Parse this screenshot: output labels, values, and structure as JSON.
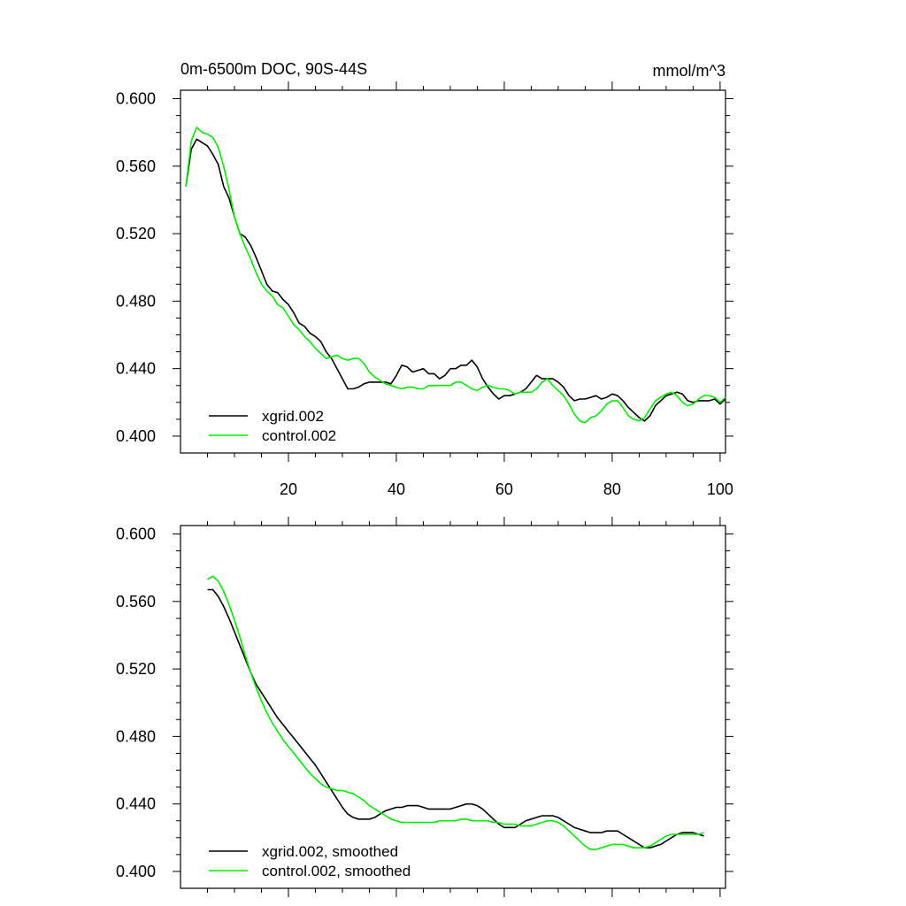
{
  "colors": {
    "xgrid": "#000000",
    "control": "#00ee00"
  },
  "chart_data": [
    {
      "type": "line",
      "title": "0m-6500m DOC, 90S-44S",
      "units": "mmol/m^3",
      "xlim": [
        0,
        101
      ],
      "ylim": [
        0.39,
        0.605
      ],
      "yticks": [
        0.4,
        0.44,
        0.48,
        0.52,
        0.56,
        0.6
      ],
      "ytick_labels": [
        "0.400",
        "0.440",
        "0.480",
        "0.520",
        "0.560",
        "0.600"
      ],
      "xticks": [
        20,
        40,
        60,
        80,
        100
      ],
      "xtick_labels": [
        "20",
        "40",
        "60",
        "80",
        "100"
      ],
      "series": [
        {
          "name": "xgrid.002",
          "color_key": "xgrid",
          "x": [
            1,
            2,
            3,
            4,
            5,
            6,
            7,
            8,
            9,
            10,
            11,
            12,
            13,
            14,
            15,
            16,
            17,
            18,
            19,
            20,
            21,
            22,
            23,
            24,
            25,
            26,
            27,
            28,
            29,
            30,
            31,
            32,
            33,
            34,
            35,
            36,
            37,
            38,
            39,
            40,
            41,
            42,
            43,
            44,
            45,
            46,
            47,
            48,
            49,
            50,
            51,
            52,
            53,
            54,
            55,
            56,
            57,
            58,
            59,
            60,
            61,
            62,
            63,
            64,
            65,
            66,
            67,
            68,
            69,
            70,
            71,
            72,
            73,
            74,
            75,
            76,
            77,
            78,
            79,
            80,
            81,
            82,
            83,
            84,
            85,
            86,
            87,
            88,
            89,
            90,
            91,
            92,
            93,
            94,
            95,
            96,
            97,
            98,
            99,
            100,
            101
          ],
          "values": [
            0.548,
            0.57,
            0.576,
            0.574,
            0.572,
            0.567,
            0.561,
            0.548,
            0.541,
            0.53,
            0.52,
            0.518,
            0.513,
            0.506,
            0.498,
            0.49,
            0.486,
            0.485,
            0.481,
            0.478,
            0.473,
            0.467,
            0.465,
            0.461,
            0.459,
            0.456,
            0.45,
            0.446,
            0.44,
            0.434,
            0.428,
            0.428,
            0.429,
            0.431,
            0.432,
            0.432,
            0.432,
            0.432,
            0.431,
            0.436,
            0.442,
            0.441,
            0.438,
            0.439,
            0.44,
            0.437,
            0.437,
            0.434,
            0.436,
            0.44,
            0.44,
            0.442,
            0.442,
            0.445,
            0.441,
            0.434,
            0.429,
            0.425,
            0.422,
            0.424,
            0.424,
            0.425,
            0.426,
            0.428,
            0.432,
            0.436,
            0.434,
            0.434,
            0.434,
            0.432,
            0.429,
            0.424,
            0.421,
            0.422,
            0.422,
            0.423,
            0.424,
            0.422,
            0.423,
            0.425,
            0.424,
            0.421,
            0.417,
            0.414,
            0.411,
            0.409,
            0.412,
            0.418,
            0.421,
            0.424,
            0.425,
            0.426,
            0.425,
            0.421,
            0.42,
            0.421,
            0.421,
            0.421,
            0.422,
            0.419,
            0.422
          ]
        },
        {
          "name": "control.002",
          "color_key": "control",
          "x": [
            1,
            2,
            3,
            4,
            5,
            6,
            7,
            8,
            9,
            10,
            11,
            12,
            13,
            14,
            15,
            16,
            17,
            18,
            19,
            20,
            21,
            22,
            23,
            24,
            25,
            26,
            27,
            28,
            29,
            30,
            31,
            32,
            33,
            34,
            35,
            36,
            37,
            38,
            39,
            40,
            41,
            42,
            43,
            44,
            45,
            46,
            47,
            48,
            49,
            50,
            51,
            52,
            53,
            54,
            55,
            56,
            57,
            58,
            59,
            60,
            61,
            62,
            63,
            64,
            65,
            66,
            67,
            68,
            69,
            70,
            71,
            72,
            73,
            74,
            75,
            76,
            77,
            78,
            79,
            80,
            81,
            82,
            83,
            84,
            85,
            86,
            87,
            88,
            89,
            90,
            91,
            92,
            93,
            94,
            95,
            96,
            97,
            98,
            99,
            100,
            101
          ],
          "values": [
            0.548,
            0.575,
            0.583,
            0.58,
            0.579,
            0.577,
            0.571,
            0.56,
            0.546,
            0.53,
            0.52,
            0.512,
            0.505,
            0.497,
            0.49,
            0.486,
            0.483,
            0.478,
            0.476,
            0.471,
            0.466,
            0.463,
            0.459,
            0.456,
            0.452,
            0.449,
            0.446,
            0.447,
            0.448,
            0.446,
            0.445,
            0.446,
            0.446,
            0.443,
            0.438,
            0.435,
            0.433,
            0.431,
            0.43,
            0.429,
            0.428,
            0.429,
            0.429,
            0.428,
            0.428,
            0.43,
            0.43,
            0.43,
            0.43,
            0.43,
            0.432,
            0.432,
            0.43,
            0.428,
            0.427,
            0.429,
            0.43,
            0.429,
            0.428,
            0.428,
            0.427,
            0.425,
            0.426,
            0.426,
            0.426,
            0.428,
            0.432,
            0.434,
            0.43,
            0.427,
            0.424,
            0.419,
            0.413,
            0.409,
            0.408,
            0.411,
            0.412,
            0.415,
            0.419,
            0.421,
            0.421,
            0.417,
            0.412,
            0.41,
            0.409,
            0.411,
            0.416,
            0.421,
            0.423,
            0.425,
            0.426,
            0.424,
            0.42,
            0.418,
            0.419,
            0.422,
            0.424,
            0.424,
            0.423,
            0.42,
            0.423
          ]
        }
      ],
      "legend": {
        "placement": "bottom-left",
        "entries": [
          "xgrid.002",
          "control.002"
        ]
      }
    },
    {
      "type": "line",
      "title": "",
      "xlim": [
        0,
        101
      ],
      "ylim": [
        0.39,
        0.605
      ],
      "yticks": [
        0.4,
        0.44,
        0.48,
        0.52,
        0.56,
        0.6
      ],
      "ytick_labels": [
        "0.400",
        "0.440",
        "0.480",
        "0.520",
        "0.560",
        "0.600"
      ],
      "xticks": [
        20,
        40,
        60,
        80,
        100
      ],
      "xtick_labels": [],
      "series": [
        {
          "name": "xgrid.002, smoothed",
          "color_key": "xgrid",
          "x": [
            5,
            6,
            7,
            8,
            9,
            10,
            11,
            12,
            13,
            14,
            15,
            16,
            17,
            18,
            19,
            20,
            21,
            22,
            23,
            24,
            25,
            26,
            27,
            28,
            29,
            30,
            31,
            32,
            33,
            34,
            35,
            36,
            37,
            38,
            39,
            40,
            41,
            42,
            43,
            44,
            45,
            46,
            47,
            48,
            49,
            50,
            51,
            52,
            53,
            54,
            55,
            56,
            57,
            58,
            59,
            60,
            61,
            62,
            63,
            64,
            65,
            66,
            67,
            68,
            69,
            70,
            71,
            72,
            73,
            74,
            75,
            76,
            77,
            78,
            79,
            80,
            81,
            82,
            83,
            84,
            85,
            86,
            87,
            88,
            89,
            90,
            91,
            92,
            93,
            94,
            95,
            96,
            97
          ],
          "values": [
            0.567,
            0.567,
            0.563,
            0.557,
            0.55,
            0.542,
            0.534,
            0.526,
            0.518,
            0.511,
            0.506,
            0.501,
            0.496,
            0.491,
            0.487,
            0.483,
            0.479,
            0.475,
            0.471,
            0.467,
            0.463,
            0.458,
            0.453,
            0.448,
            0.443,
            0.438,
            0.434,
            0.432,
            0.431,
            0.431,
            0.431,
            0.432,
            0.434,
            0.436,
            0.437,
            0.438,
            0.438,
            0.439,
            0.439,
            0.439,
            0.438,
            0.437,
            0.437,
            0.437,
            0.437,
            0.437,
            0.438,
            0.439,
            0.44,
            0.44,
            0.439,
            0.437,
            0.434,
            0.431,
            0.428,
            0.426,
            0.426,
            0.426,
            0.428,
            0.43,
            0.431,
            0.432,
            0.433,
            0.433,
            0.433,
            0.432,
            0.43,
            0.428,
            0.426,
            0.425,
            0.424,
            0.423,
            0.423,
            0.423,
            0.424,
            0.424,
            0.424,
            0.422,
            0.42,
            0.418,
            0.416,
            0.414,
            0.414,
            0.415,
            0.416,
            0.418,
            0.42,
            0.422,
            0.423,
            0.423,
            0.423,
            0.422,
            0.421
          ]
        },
        {
          "name": "control.002, smoothed",
          "color_key": "control",
          "x": [
            5,
            6,
            7,
            8,
            9,
            10,
            11,
            12,
            13,
            14,
            15,
            16,
            17,
            18,
            19,
            20,
            21,
            22,
            23,
            24,
            25,
            26,
            27,
            28,
            29,
            30,
            31,
            32,
            33,
            34,
            35,
            36,
            37,
            38,
            39,
            40,
            41,
            42,
            43,
            44,
            45,
            46,
            47,
            48,
            49,
            50,
            51,
            52,
            53,
            54,
            55,
            56,
            57,
            58,
            59,
            60,
            61,
            62,
            63,
            64,
            65,
            66,
            67,
            68,
            69,
            70,
            71,
            72,
            73,
            74,
            75,
            76,
            77,
            78,
            79,
            80,
            81,
            82,
            83,
            84,
            85,
            86,
            87,
            88,
            89,
            90,
            91,
            92,
            93,
            94,
            95,
            96,
            97
          ],
          "values": [
            0.573,
            0.575,
            0.572,
            0.566,
            0.558,
            0.549,
            0.539,
            0.528,
            0.518,
            0.509,
            0.501,
            0.494,
            0.488,
            0.483,
            0.478,
            0.474,
            0.47,
            0.466,
            0.462,
            0.458,
            0.455,
            0.452,
            0.45,
            0.449,
            0.448,
            0.448,
            0.447,
            0.446,
            0.444,
            0.442,
            0.439,
            0.437,
            0.435,
            0.433,
            0.431,
            0.43,
            0.429,
            0.429,
            0.429,
            0.429,
            0.429,
            0.429,
            0.429,
            0.43,
            0.43,
            0.43,
            0.43,
            0.431,
            0.431,
            0.43,
            0.43,
            0.43,
            0.43,
            0.429,
            0.429,
            0.428,
            0.428,
            0.428,
            0.427,
            0.427,
            0.427,
            0.428,
            0.429,
            0.43,
            0.43,
            0.429,
            0.427,
            0.424,
            0.421,
            0.418,
            0.415,
            0.413,
            0.413,
            0.414,
            0.415,
            0.416,
            0.416,
            0.416,
            0.415,
            0.414,
            0.414,
            0.414,
            0.415,
            0.417,
            0.419,
            0.421,
            0.422,
            0.422,
            0.422,
            0.422,
            0.422,
            0.422,
            0.423
          ]
        }
      ],
      "legend": {
        "placement": "bottom-left",
        "entries": [
          "xgrid.002, smoothed",
          "control.002, smoothed"
        ]
      }
    }
  ]
}
